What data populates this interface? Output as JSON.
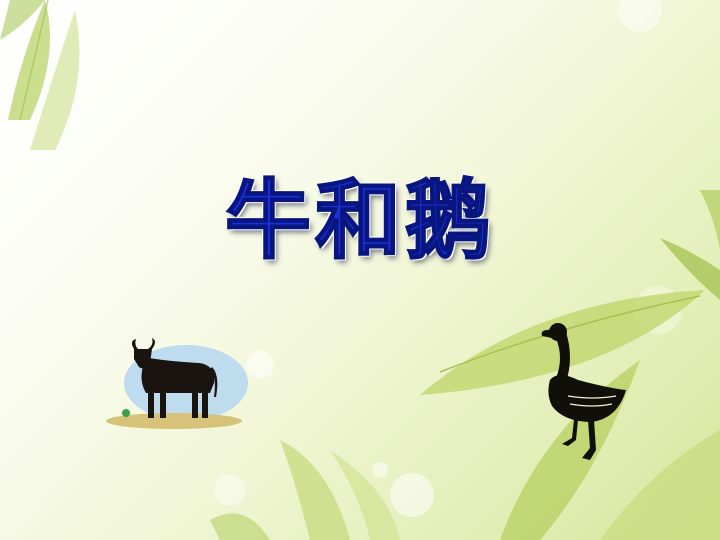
{
  "slide": {
    "title": "牛和鹅"
  },
  "images": {
    "ox": "ox-silhouette",
    "goose": "goose-silhouette"
  },
  "colors": {
    "title": "#1a2fd6",
    "title_outline": "#0a1680",
    "leaf": "#c9dc7a",
    "silhouette": "#1a1410"
  }
}
